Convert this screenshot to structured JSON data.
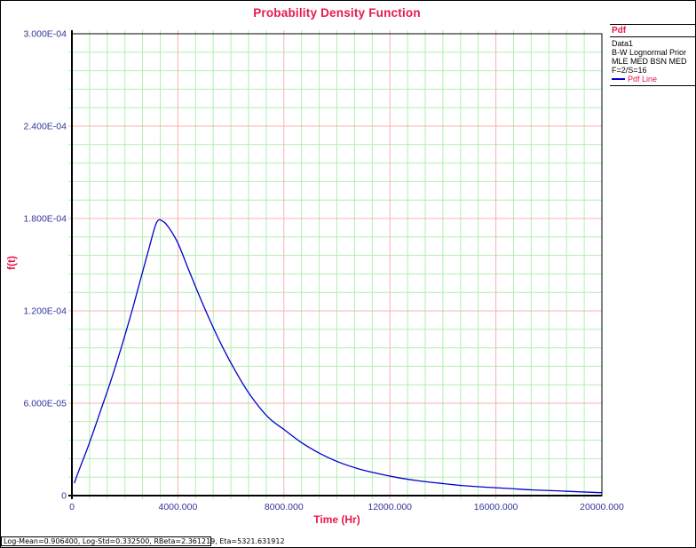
{
  "title": "Probability Density Function",
  "colors": {
    "accent_red": "#e6194b",
    "tick_label_blue": "#333399",
    "curve_blue": "#0000cd",
    "minor_grid_green": "#b2eeb2",
    "major_grid_red": "#f8b0b0",
    "axis_black": "#000000"
  },
  "legend": {
    "header": "Pdf",
    "lines": [
      "Data1",
      "B-W Lognormal Prior",
      "MLE MED BSN MED",
      "F=2/S=16"
    ],
    "series_label": "Pdf Line"
  },
  "status_bar": "Log-Mean=0.906400, Log-Std=0.332500, RBeta=2.361219, Eta=5321.631912",
  "chart_data": {
    "type": "line",
    "title": "Probability Density Function",
    "xlabel": "Time (Hr)",
    "ylabel": "f(t)",
    "xlim": [
      0,
      20000
    ],
    "ylim": [
      0,
      0.0003
    ],
    "grid": "on",
    "legend_position": "top-right-outside",
    "x_ticks": {
      "values": [
        0,
        4000,
        8000,
        12000,
        16000,
        20000
      ],
      "labels": [
        "0",
        "4000.000",
        "8000.000",
        "12000.000",
        "16000.000",
        "20000.000"
      ]
    },
    "y_ticks": {
      "values": [
        0,
        6e-05,
        0.00012,
        0.00018,
        0.00024,
        0.0003
      ],
      "labels": [
        "0",
        "6.000E-05",
        "1.200E-04",
        "1.800E-04",
        "2.400E-04",
        "3.000E-04"
      ]
    },
    "x_minor_per_major": 6,
    "y_minor_per_major": 5,
    "peak": {
      "t": 3200,
      "f": 0.000178
    },
    "series": [
      {
        "name": "Pdf Line",
        "color": "#0000cd",
        "x": [
          90,
          300,
          550,
          800,
          1100,
          1400,
          1700,
          2000,
          2300,
          2600,
          2900,
          3200,
          3450,
          3700,
          4000,
          4400,
          4900,
          5500,
          6100,
          6700,
          7400,
          8000,
          8700,
          9400,
          10100,
          10800,
          11500,
          12200,
          13000,
          13800,
          14700,
          15600,
          16500,
          17400,
          18300,
          19200,
          20000
        ],
        "y": [
          8e-06,
          1.8e-05,
          2.9e-05,
          4.1e-05,
          5.6e-05,
          7.1e-05,
          8.7e-05,
          0.000104,
          0.000122,
          0.000141,
          0.00016,
          0.0001775,
          0.000178,
          0.000173,
          0.000164,
          0.000147,
          0.000126,
          0.000103,
          8.3e-05,
          6.6e-05,
          5.1e-05,
          4.3e-05,
          3.4e-05,
          2.7e-05,
          2.15e-05,
          1.75e-05,
          1.45e-05,
          1.2e-05,
          9.8e-06,
          8.2e-06,
          6.6e-06,
          5.5e-06,
          4.6e-06,
          3.7e-06,
          3.1e-06,
          2.4e-06,
          1.9e-06
        ]
      }
    ]
  }
}
